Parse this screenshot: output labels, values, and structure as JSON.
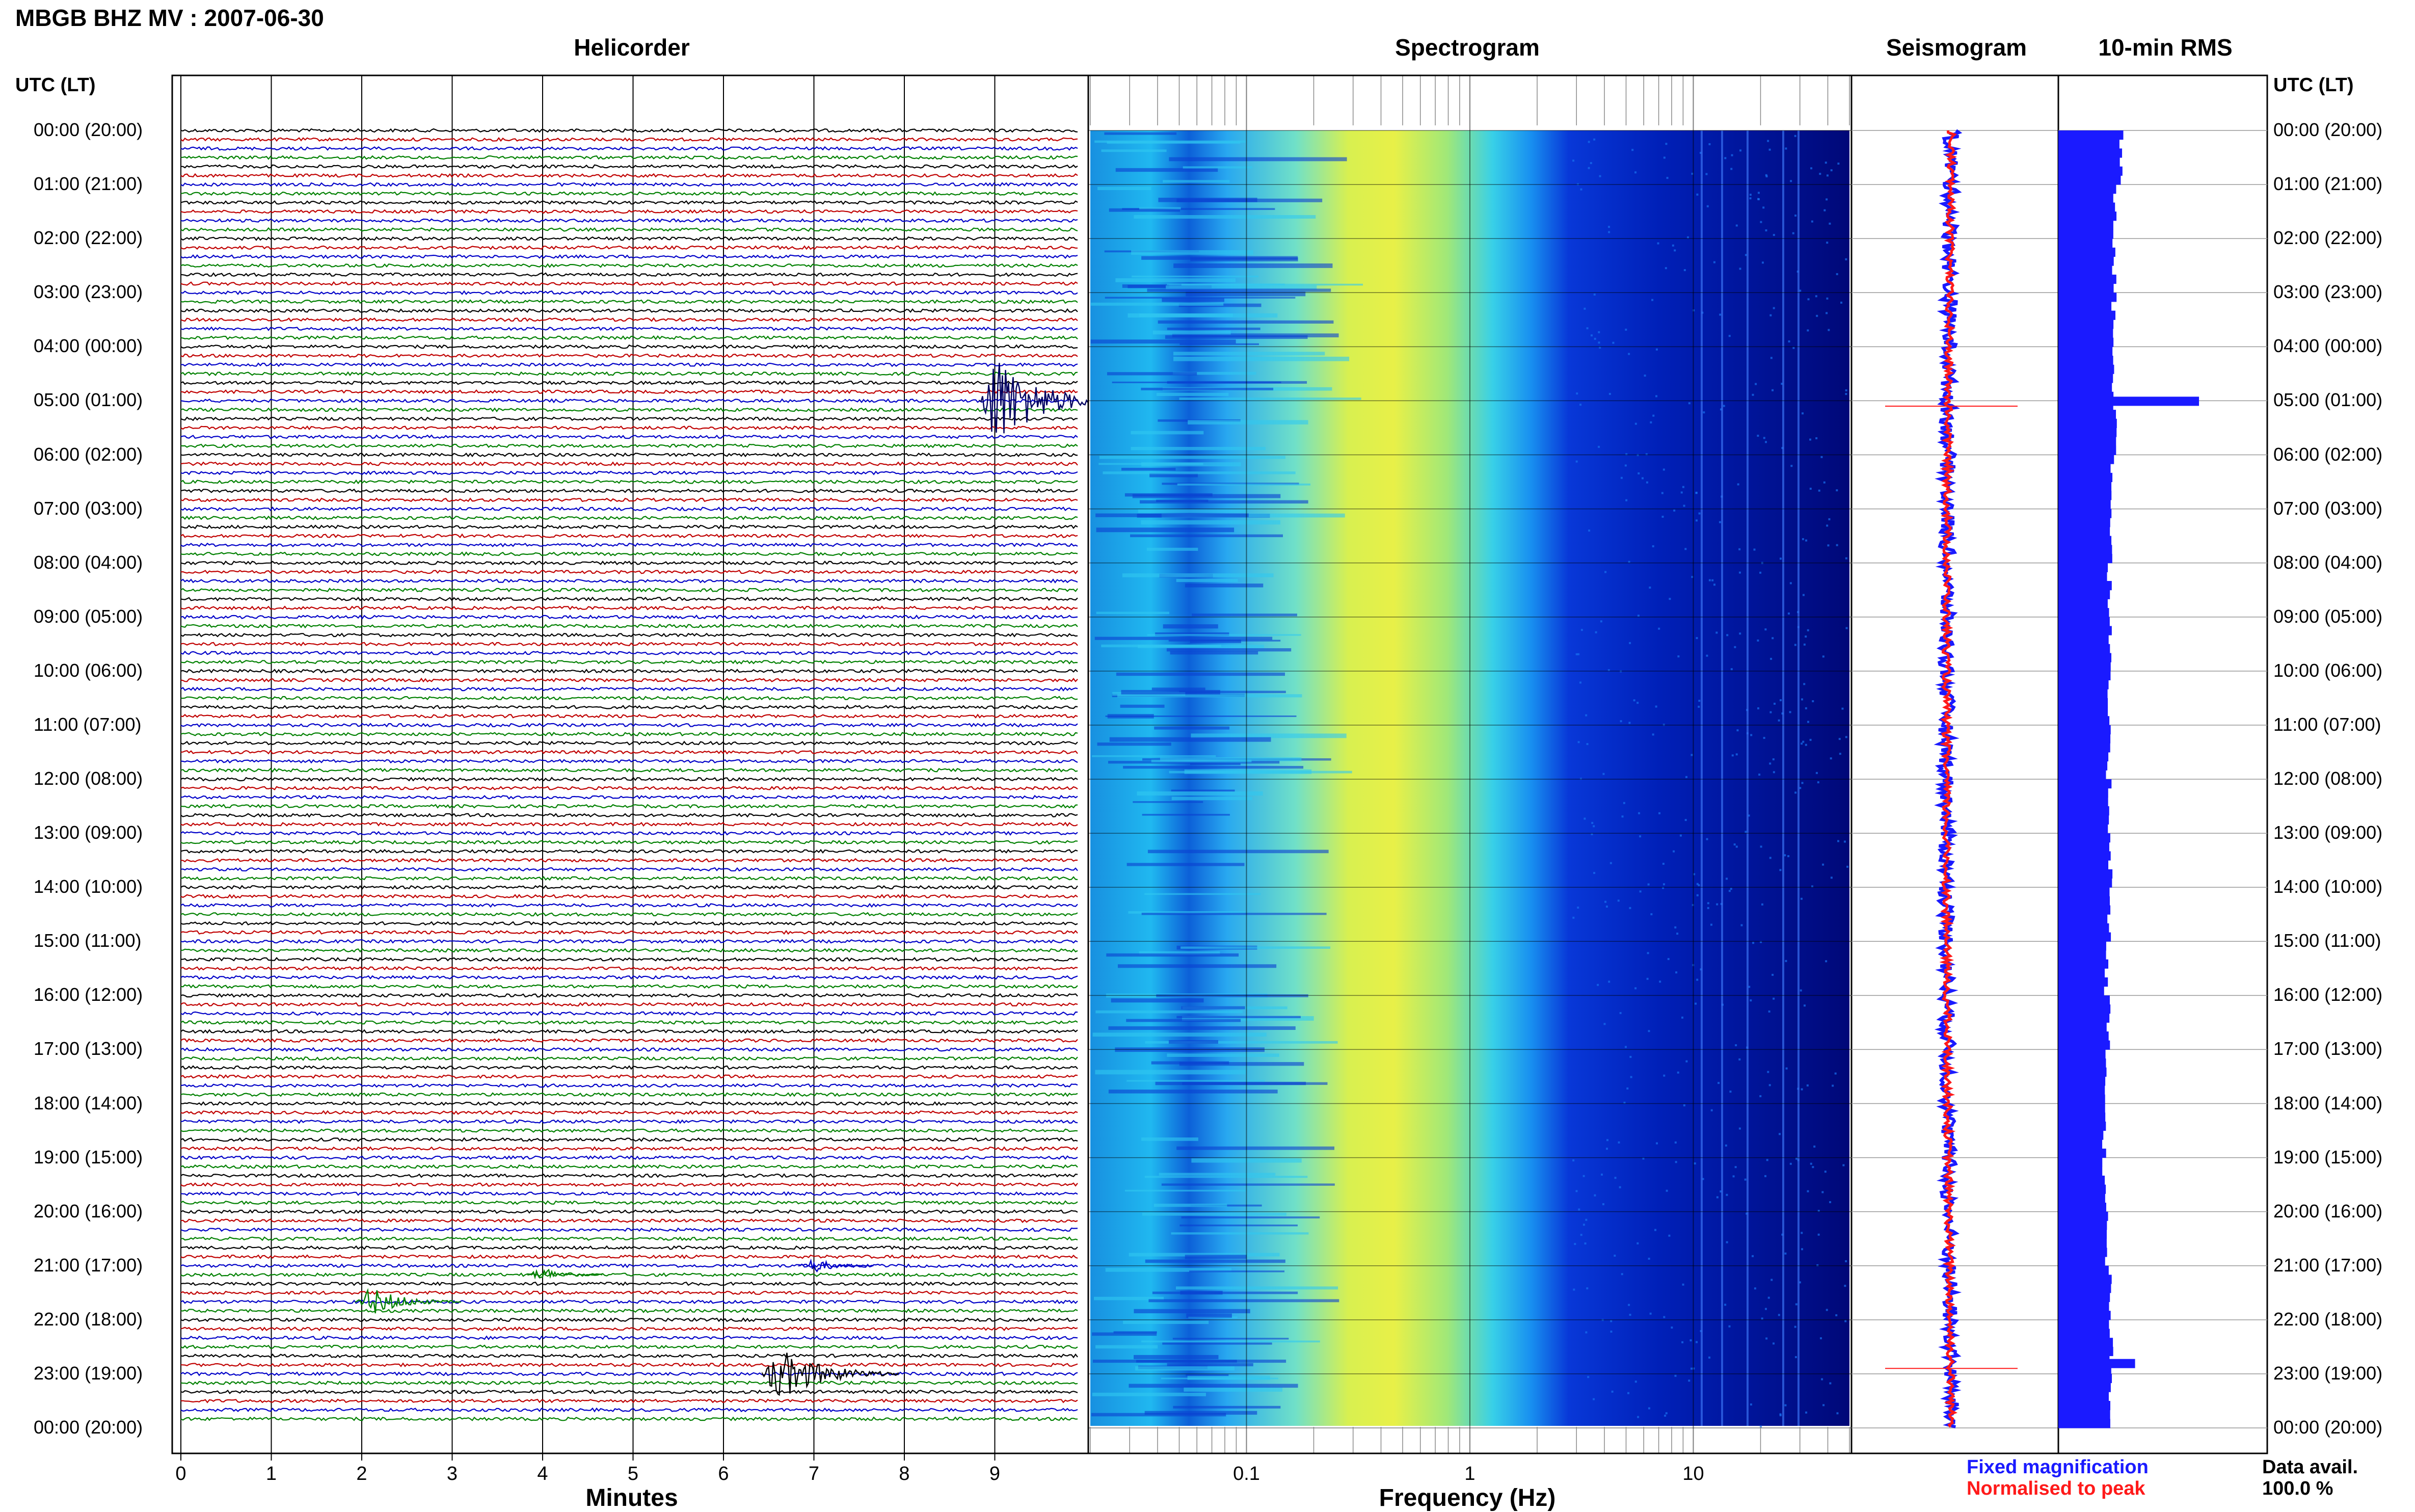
{
  "header": {
    "title": "MBGB BHZ MV : 2007-06-30"
  },
  "panels": {
    "helicorder": "Helicorder",
    "spectrogram": "Spectrogram",
    "seismogram": "Seismogram",
    "rms": "10-min RMS"
  },
  "axes": {
    "utc_left": "UTC (LT)",
    "utc_right": "UTC (LT)",
    "minutes_label": "Minutes",
    "frequency_label": "Frequency (Hz)"
  },
  "legend": {
    "fixed": "Fixed magnification",
    "normalised": "Normalised to peak"
  },
  "data_avail": {
    "label": "Data avail.",
    "value": "100.0 %"
  },
  "colors": {
    "trace_cycle": [
      "#000000",
      "#c00000",
      "#0000c8",
      "#008000"
    ],
    "rms_bar": "#1a1aff",
    "seis_blue": "#1a1aff",
    "seis_red": "#ff1a1a",
    "spectrogram_scale": [
      "#00007a",
      "#0028d8",
      "#10a8f0",
      "#3ce0e0",
      "#a8f070",
      "#f0f040"
    ]
  },
  "chart_data": [
    {
      "type": "helicorder",
      "title": "Helicorder",
      "xlabel": "Minutes",
      "x_ticks": [
        "0",
        "1",
        "2",
        "3",
        "4",
        "5",
        "6",
        "7",
        "8",
        "9"
      ],
      "xlim": [
        0,
        10
      ],
      "hour_labels": [
        "00:00 (20:00)",
        "01:00 (21:00)",
        "02:00 (22:00)",
        "03:00 (23:00)",
        "04:00 (00:00)",
        "05:00 (01:00)",
        "06:00 (02:00)",
        "07:00 (03:00)",
        "08:00 (04:00)",
        "09:00 (05:00)",
        "10:00 (06:00)",
        "11:00 (07:00)",
        "12:00 (08:00)",
        "13:00 (09:00)",
        "14:00 (10:00)",
        "15:00 (11:00)",
        "16:00 (12:00)",
        "17:00 (13:00)",
        "18:00 (14:00)",
        "19:00 (15:00)",
        "20:00 (16:00)",
        "21:00 (17:00)",
        "22:00 (18:00)",
        "23:00 (19:00)",
        "00:00 (20:00)"
      ],
      "rows_per_hour": 6,
      "events": [
        {
          "hour": 5,
          "row": 0,
          "minute": 9.0,
          "amplitude": 4.0,
          "color": "#000060"
        },
        {
          "hour": 21,
          "row": 0,
          "minute": 7.0,
          "amplitude": 0.6,
          "color": "#0000c8"
        },
        {
          "hour": 21,
          "row": 1,
          "minute": 4.0,
          "amplitude": 0.6,
          "color": "#008000"
        },
        {
          "hour": 21,
          "row": 4,
          "minute": 2.1,
          "amplitude": 1.2,
          "color": "#008000"
        },
        {
          "hour": 23,
          "row": 0,
          "minute": 6.6,
          "amplitude": 2.2,
          "color": "#000000"
        }
      ]
    },
    {
      "type": "heatmap",
      "title": "Spectrogram",
      "xlabel": "Frequency (Hz)",
      "x_scale": "log",
      "xlim": [
        0.02,
        50
      ],
      "x_ticks": [
        "0.1",
        "1",
        "10"
      ],
      "peak_frequency_hz": 0.4,
      "high_energy_band_hz": [
        0.2,
        1.0
      ]
    },
    {
      "type": "line",
      "title": "Seismogram",
      "series": [
        {
          "name": "Fixed magnification"
        },
        {
          "name": "Normalised to peak"
        }
      ],
      "spikes_at_hour": [
        5.1,
        22.9
      ]
    },
    {
      "type": "bar",
      "title": "10-min RMS",
      "orientation": "horizontal",
      "values_by_hour": [
        1.0,
        0.9,
        0.88,
        0.87,
        0.85,
        0.9,
        0.85,
        0.83,
        0.8,
        0.8,
        0.78,
        0.78,
        0.8,
        0.82,
        0.8,
        0.75,
        0.78,
        0.75,
        0.72,
        0.72,
        0.75,
        0.8,
        0.82,
        0.8
      ],
      "spikes": [
        {
          "hour": 5.0,
          "value": 2.2
        },
        {
          "hour": 22.8,
          "value": 1.2
        }
      ]
    }
  ]
}
